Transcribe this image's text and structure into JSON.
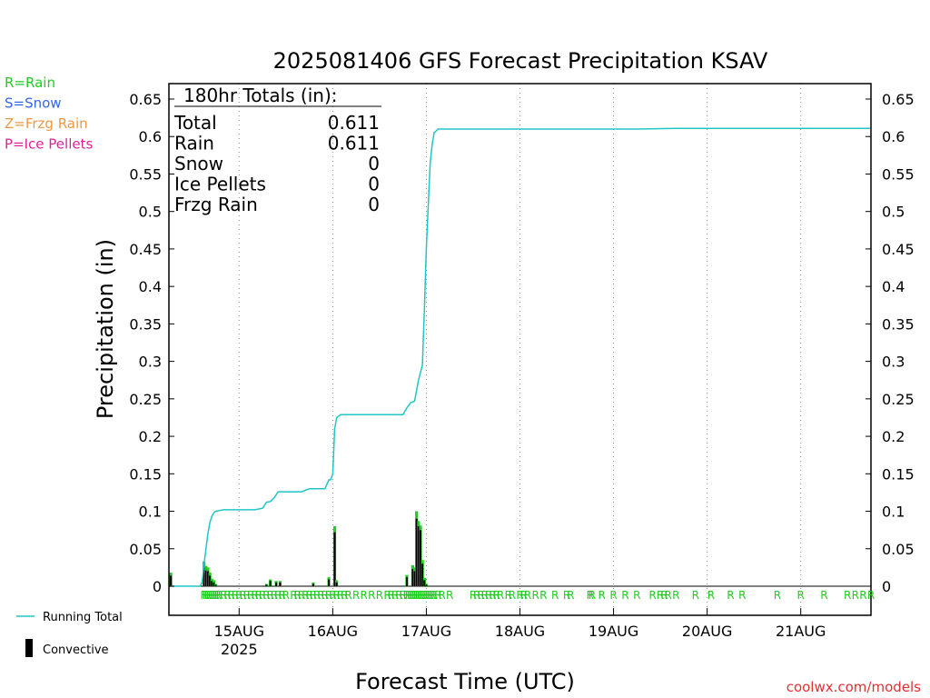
{
  "chart_data": {
    "type": "bar",
    "title": "2025081406 GFS Forecast Precipitation KSAV",
    "xlabel": "Forecast Time (UTC)",
    "ylabel": "Precipitation (in)",
    "ylim": [
      0,
      0.65
    ],
    "xlim_hours": [
      0,
      180
    ],
    "yticks": [
      0,
      0.05,
      0.1,
      0.15,
      0.2,
      0.25,
      0.3,
      0.35,
      0.4,
      0.45,
      0.5,
      0.55,
      0.6,
      0.65
    ],
    "ytick_labels": [
      "0",
      "0.05",
      "0.1",
      "0.15",
      "0.2",
      "0.25",
      "0.3",
      "0.35",
      "0.4",
      "0.45",
      "0.5",
      "0.55",
      "0.6",
      "0.65"
    ],
    "xticks": [
      {
        "hour": 18,
        "label": "15AUG",
        "sublabel": "2025"
      },
      {
        "hour": 42,
        "label": "16AUG",
        "sublabel": ""
      },
      {
        "hour": 66,
        "label": "17AUG",
        "sublabel": ""
      },
      {
        "hour": 90,
        "label": "18AUG",
        "sublabel": ""
      },
      {
        "hour": 114,
        "label": "19AUG",
        "sublabel": ""
      },
      {
        "hour": 138,
        "label": "20AUG",
        "sublabel": ""
      },
      {
        "hour": 162,
        "label": "21AUG",
        "sublabel": ""
      }
    ],
    "grid": "vertical dotted at day boundaries",
    "totals": {
      "header": "180hr Totals (in):",
      "rows": [
        {
          "label": "Total",
          "value": "0.611"
        },
        {
          "label": "Rain",
          "value": "0.611"
        },
        {
          "label": "Snow",
          "value": "0"
        },
        {
          "label": "Ice Pellets",
          "value": "0"
        },
        {
          "label": "Frzg Rain",
          "value": "0"
        }
      ]
    },
    "type_legend": [
      {
        "text": "R=Rain",
        "color": "#22cc22"
      },
      {
        "text": "S=Snow",
        "color": "#3366ee"
      },
      {
        "text": "Z=Frzg Rain",
        "color": "#ee9944"
      },
      {
        "text": "P=Ice Pellets",
        "color": "#dd2299"
      }
    ],
    "series_legend": [
      {
        "name": "Running Total",
        "color": "#22c5c5",
        "kind": "line"
      },
      {
        "name": "Convective",
        "color": "#000000",
        "kind": "bar"
      }
    ],
    "running_total": {
      "hours": [
        0,
        8,
        8.5,
        9,
        9.5,
        10,
        10.5,
        11,
        11.5,
        12,
        13,
        14,
        16,
        18,
        20,
        22,
        24,
        25,
        26,
        27,
        28,
        30,
        32,
        34,
        36,
        37,
        38,
        40,
        41,
        41.5,
        42,
        42.5,
        43,
        44,
        48,
        54,
        60,
        61,
        62,
        63,
        64,
        65,
        65.5,
        66,
        66.5,
        67,
        67.5,
        68,
        69,
        72,
        84,
        96,
        108,
        120,
        130,
        132,
        144,
        156,
        168,
        180
      ],
      "values": [
        0,
        0,
        0.005,
        0.03,
        0.05,
        0.07,
        0.085,
        0.093,
        0.098,
        0.1,
        0.101,
        0.102,
        0.102,
        0.102,
        0.102,
        0.102,
        0.104,
        0.112,
        0.113,
        0.118,
        0.126,
        0.126,
        0.126,
        0.126,
        0.13,
        0.13,
        0.13,
        0.13,
        0.142,
        0.142,
        0.15,
        0.21,
        0.225,
        0.229,
        0.229,
        0.229,
        0.229,
        0.238,
        0.245,
        0.247,
        0.275,
        0.295,
        0.37,
        0.45,
        0.51,
        0.565,
        0.59,
        0.605,
        0.61,
        0.61,
        0.61,
        0.61,
        0.61,
        0.61,
        0.611,
        0.611,
        0.611,
        0.611,
        0.611,
        0.611
      ]
    },
    "bars": {
      "hours": [
        0,
        9,
        9.5,
        10,
        10.5,
        11,
        11.5,
        12,
        25,
        26,
        27.5,
        28.5,
        37,
        41,
        42.5,
        43,
        61,
        62.5,
        63,
        63.5,
        64,
        64.5,
        65,
        65.5,
        66
      ],
      "total": [
        0.018,
        0.033,
        0.027,
        0.025,
        0.018,
        0.01,
        0.008,
        0.003,
        0.003,
        0.009,
        0.007,
        0.007,
        0.005,
        0.012,
        0.08,
        0.008,
        0.015,
        0.028,
        0.025,
        0.1,
        0.087,
        0.081,
        0.035,
        0.011,
        0.003
      ],
      "convective": [
        0.014,
        0.026,
        0.021,
        0.02,
        0.014,
        0.007,
        0.005,
        0.002,
        0.002,
        0.007,
        0.005,
        0.005,
        0.003,
        0.009,
        0.072,
        0.005,
        0.012,
        0.023,
        0.02,
        0.09,
        0.08,
        0.075,
        0.03,
        0.008,
        0.002
      ]
    },
    "type_markers": {
      "label": "R",
      "hours": [
        9,
        9.5,
        10,
        10.5,
        11,
        11.5,
        12,
        12.5,
        13,
        14,
        15,
        16,
        17,
        18,
        19,
        20,
        21,
        22,
        23,
        24,
        25,
        26,
        27,
        28,
        29,
        30,
        32,
        33,
        34,
        35,
        36,
        37,
        38,
        39,
        40,
        41,
        42,
        43,
        44,
        45,
        46,
        48,
        50,
        52,
        54,
        56,
        57,
        58,
        59,
        60,
        61,
        61.5,
        62,
        62.5,
        63,
        63.5,
        64,
        64.5,
        65,
        65.5,
        66,
        66.5,
        67,
        67.5,
        68,
        69,
        70,
        72,
        78,
        79,
        80,
        81,
        82,
        83,
        84,
        85,
        87,
        88,
        90,
        91,
        92,
        94,
        96,
        99,
        102,
        103,
        108,
        108.5,
        111,
        114,
        117,
        120,
        124,
        126,
        127,
        128,
        130,
        135,
        139,
        144,
        147,
        156,
        162,
        168,
        174,
        176,
        178,
        180
      ]
    }
  },
  "credit": {
    "text": "coolwx.com/models",
    "color": "#dd3333"
  }
}
